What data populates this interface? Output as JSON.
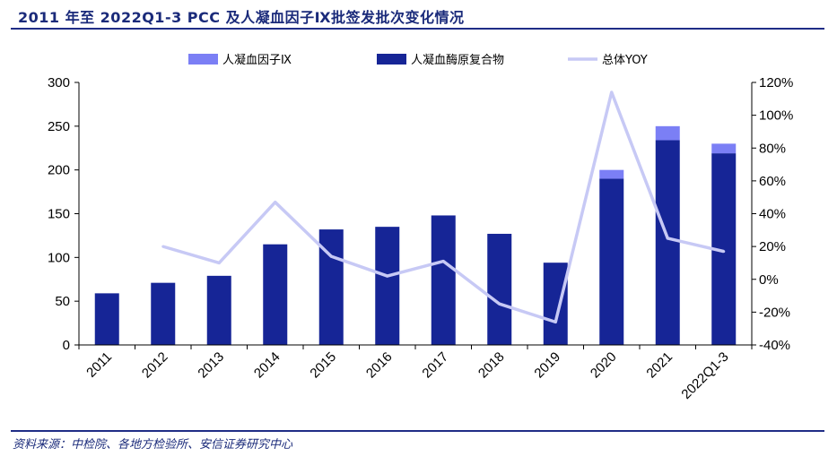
{
  "header": {
    "title": "2011 年至 2022Q1-3 PCC 及人凝血因子Ⅸ批签发批次变化情况"
  },
  "footer": {
    "source": "资料来源：中检院、各地方检验所、安信证券研究中心"
  },
  "colors": {
    "factor_ix": "#7b7ff5",
    "pcc": "#162596",
    "yoy": "#c7c9f5",
    "rule": "#1f2d86",
    "title": "#1a2a7a"
  },
  "chart_data": {
    "type": "bar",
    "stacked": true,
    "categories": [
      "2011",
      "2012",
      "2013",
      "2014",
      "2015",
      "2016",
      "2017",
      "2018",
      "2019",
      "2020",
      "2021",
      "2022Q1-3"
    ],
    "series": [
      {
        "name": "人凝血因子Ⅸ",
        "type": "bar",
        "axis": "left",
        "values": [
          0,
          0,
          0,
          0,
          0,
          0,
          0,
          0,
          0,
          10,
          16,
          11
        ]
      },
      {
        "name": "人凝血酶原复合物",
        "type": "bar",
        "axis": "left",
        "values": [
          59,
          71,
          79,
          115,
          132,
          135,
          148,
          127,
          94,
          190,
          234,
          219
        ]
      },
      {
        "name": "总体YOY",
        "type": "line",
        "axis": "right",
        "unit": "%",
        "values": [
          null,
          20,
          10,
          47,
          14,
          2,
          11,
          -15,
          -26,
          114,
          25,
          17
        ]
      }
    ],
    "y_left": {
      "min": 0,
      "max": 300,
      "ticks": [
        0,
        50,
        100,
        150,
        200,
        250,
        300
      ]
    },
    "y_right": {
      "min": -40,
      "max": 120,
      "ticks": [
        -40,
        -20,
        0,
        20,
        40,
        60,
        80,
        100,
        120
      ],
      "format": "percent"
    },
    "grid": false,
    "legend_position": "top"
  }
}
